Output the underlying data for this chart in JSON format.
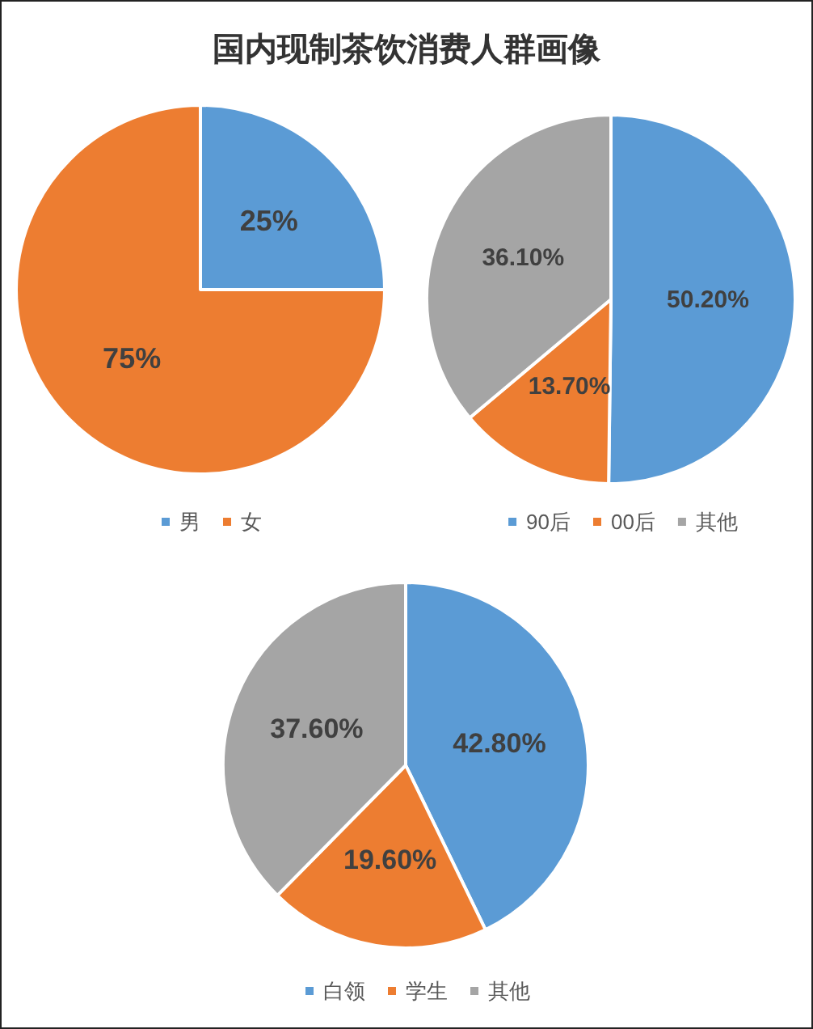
{
  "chart_data": [
    {
      "type": "pie",
      "title": "国内现制茶饮消费人群画像",
      "categories": [
        "男",
        "女"
      ],
      "values": [
        25,
        75
      ],
      "colors": [
        "#5b9bd5",
        "#ed7d31"
      ],
      "value_labels": [
        "25%",
        "75%"
      ],
      "legend": "bottom"
    },
    {
      "type": "pie",
      "categories": [
        "90后",
        "00后",
        "其他"
      ],
      "values": [
        50.2,
        13.7,
        36.1
      ],
      "colors": [
        "#5b9bd5",
        "#ed7d31",
        "#a5a5a5"
      ],
      "value_labels": [
        "50.20%",
        "13.70%",
        "36.10%"
      ],
      "legend": "bottom"
    },
    {
      "type": "pie",
      "categories": [
        "白领",
        "学生",
        "其他"
      ],
      "values": [
        42.8,
        19.6,
        37.6
      ],
      "colors": [
        "#5b9bd5",
        "#ed7d31",
        "#a5a5a5"
      ],
      "value_labels": [
        "42.80%",
        "19.60%",
        "37.60%"
      ],
      "legend": "bottom"
    }
  ]
}
